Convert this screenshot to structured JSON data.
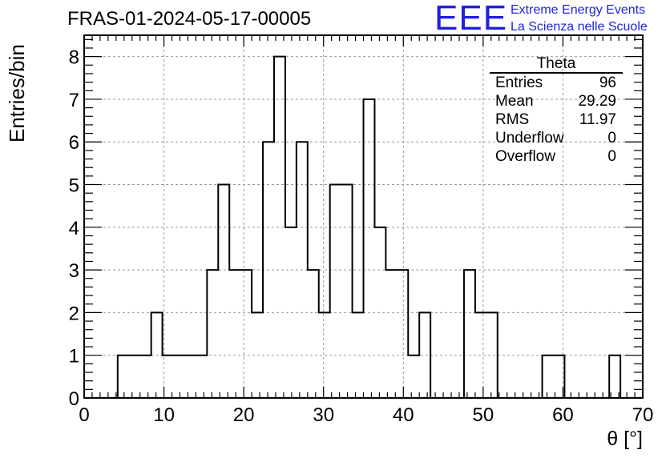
{
  "title": "FRAS-01-2024-05-17-00005",
  "logo": {
    "text": "EEE",
    "line1": "Extreme Energy Events",
    "line2": "La Scienza nelle Scuole",
    "color": "#1f1fe0"
  },
  "stats": {
    "title": "Theta",
    "rows": [
      {
        "label": "Entries",
        "value": "96"
      },
      {
        "label": "Mean",
        "value": "29.29"
      },
      {
        "label": "RMS",
        "value": "11.97"
      },
      {
        "label": "Underflow",
        "value": "0"
      },
      {
        "label": "Overflow",
        "value": "0"
      }
    ]
  },
  "chart_data": {
    "type": "histogram",
    "xlabel": "θ [°]",
    "ylabel": "Entries/bin",
    "xlim": [
      0,
      70
    ],
    "ylim": [
      0,
      8.5
    ],
    "xticks": [
      0,
      10,
      20,
      30,
      40,
      50,
      60,
      70
    ],
    "yticks": [
      0,
      1,
      2,
      3,
      4,
      5,
      6,
      7,
      8
    ],
    "grid": true,
    "bin_width": 1.4,
    "bin_edges_start": 0,
    "values": [
      0,
      0,
      0,
      1,
      1,
      1,
      2,
      1,
      1,
      1,
      1,
      3,
      5,
      3,
      3,
      2,
      6,
      8,
      4,
      6,
      3,
      2,
      5,
      5,
      2,
      7,
      4,
      3,
      3,
      1,
      2,
      0,
      0,
      0,
      3,
      2,
      2,
      0,
      0,
      0,
      0,
      1,
      1,
      0,
      0,
      0,
      0,
      1,
      0,
      0
    ]
  }
}
